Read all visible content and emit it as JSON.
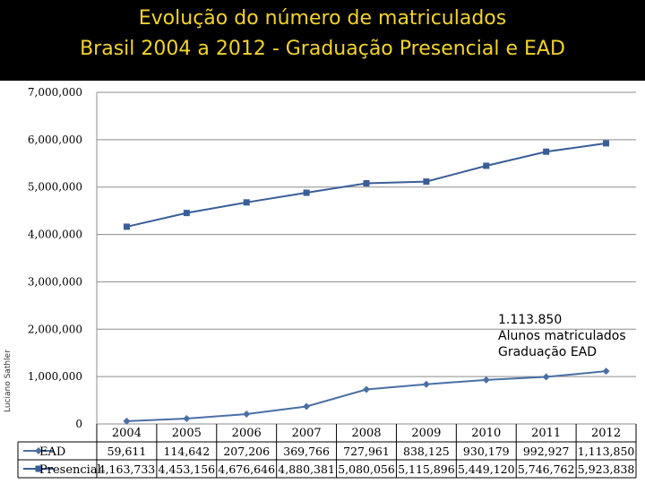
{
  "title": {
    "line1": "Evolução do número de matriculados",
    "line2": "Brasil 2004 a 2012 - Graduação Presencial e EAD"
  },
  "side_label": "Luciano Sathler",
  "annotation": {
    "line1": "1.113.850",
    "line2": "Alunos matriculados",
    "line3": "Graduação EAD"
  },
  "colors": {
    "title_background": "#000000",
    "title_text": "#f2d32c",
    "series_ead": "#4a6fa5",
    "series_presencial": "#3a5e97"
  },
  "chart_data": {
    "type": "line",
    "categories": [
      "2004",
      "2005",
      "2006",
      "2007",
      "2008",
      "2009",
      "2010",
      "2011",
      "2012"
    ],
    "y_ticks": [
      "0",
      "1,000,000",
      "2,000,000",
      "3,000,000",
      "4,000,000",
      "5,000,000",
      "6,000,000",
      "7,000,000"
    ],
    "ylim": [
      0,
      7000000
    ],
    "grid": true,
    "legend": "table-below",
    "series": [
      {
        "name": "EAD",
        "marker": "diamond",
        "values": [
          59611,
          114642,
          207206,
          369766,
          727961,
          838125,
          930179,
          992927,
          1113850
        ],
        "labels": [
          "59,611",
          "114,642",
          "207,206",
          "369,766",
          "727,961",
          "838,125",
          "930,179",
          "992,927",
          "1,113,850"
        ]
      },
      {
        "name": "Presencial",
        "marker": "square",
        "values": [
          4163733,
          4453156,
          4676646,
          4880381,
          5080056,
          5115896,
          5449120,
          5746762,
          5923838
        ],
        "labels": [
          "4,163,733",
          "4,453,156",
          "4,676,646",
          "4,880,381",
          "5,080,056",
          "5,115,896",
          "5,449,120",
          "5,746,762",
          "5,923,838"
        ]
      }
    ]
  }
}
